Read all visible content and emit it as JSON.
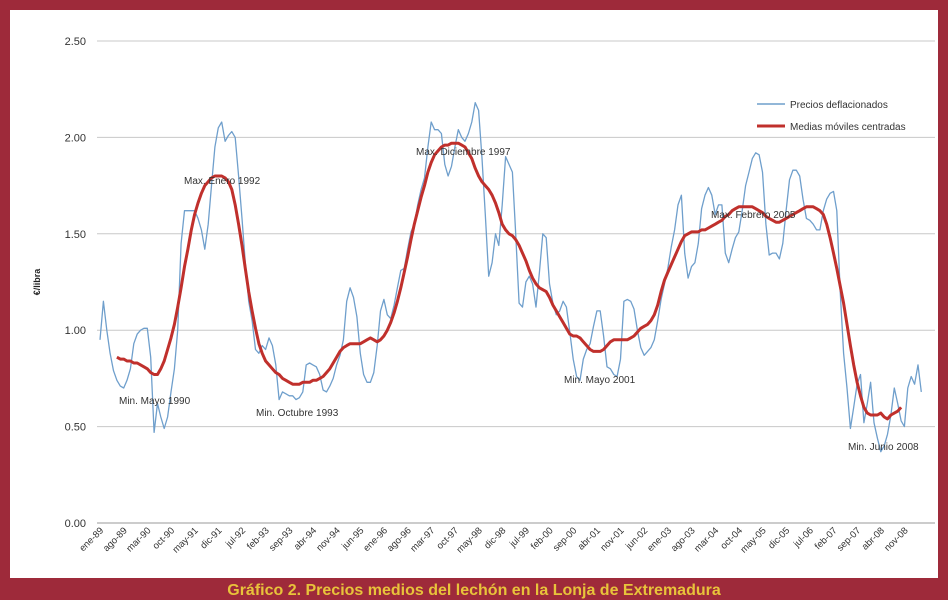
{
  "chart_data": {
    "type": "line",
    "caption": "Gráfico 2. Precios medios del lechón en la Lonja de Extremadura",
    "y_label": "€/libra",
    "annotations": [
      "Max. Enero 1992",
      "Min. Mayo 1990",
      "Min. Octubre 1993",
      "Max. Diciembre 1997",
      "Min. Mayo 2001",
      "Max. Febrero 2005",
      "Min. Junio 2008"
    ],
    "ylim": [
      0,
      2.5
    ],
    "yticks": [
      {
        "value": 0,
        "label": "0.00"
      },
      {
        "value": 0.5,
        "label": "0.50"
      },
      {
        "value": 1,
        "label": "1.00"
      },
      {
        "value": 1.5,
        "label": "1.50"
      },
      {
        "value": 2,
        "label": "2.00"
      },
      {
        "value": 2.5,
        "label": "2.50"
      }
    ],
    "grid": true,
    "legend": "upper right",
    "categories": [
      "ene-89",
      null,
      null,
      null,
      null,
      null,
      null,
      "ago-89",
      null,
      null,
      null,
      null,
      null,
      null,
      "mar-90",
      null,
      null,
      null,
      null,
      null,
      null,
      "oct-90",
      null,
      null,
      null,
      null,
      null,
      null,
      "may-91",
      null,
      null,
      null,
      null,
      null,
      null,
      "dic-91",
      null,
      null,
      null,
      null,
      null,
      null,
      "jul-92",
      null,
      null,
      null,
      null,
      null,
      null,
      "feb-93",
      null,
      null,
      null,
      null,
      null,
      null,
      "sep-93",
      null,
      null,
      null,
      null,
      null,
      null,
      "abr-94",
      null,
      null,
      null,
      null,
      null,
      null,
      "nov-94",
      null,
      null,
      null,
      null,
      null,
      null,
      "jun-95",
      null,
      null,
      null,
      null,
      null,
      null,
      "ene-96",
      null,
      null,
      null,
      null,
      null,
      null,
      "ago-96",
      null,
      null,
      null,
      null,
      null,
      null,
      "mar-97",
      null,
      null,
      null,
      null,
      null,
      null,
      "oct-97",
      null,
      null,
      null,
      null,
      null,
      null,
      "may-98",
      null,
      null,
      null,
      null,
      null,
      null,
      "dic-98",
      null,
      null,
      null,
      null,
      null,
      null,
      "jul-99",
      null,
      null,
      null,
      null,
      null,
      null,
      "feb-00",
      null,
      null,
      null,
      null,
      null,
      null,
      "sep-00",
      null,
      null,
      null,
      null,
      null,
      null,
      "abr-01",
      null,
      null,
      null,
      null,
      null,
      null,
      "nov-01",
      null,
      null,
      null,
      null,
      null,
      null,
      "jun-02",
      null,
      null,
      null,
      null,
      null,
      null,
      "ene-03",
      null,
      null,
      null,
      null,
      null,
      null,
      "ago-03",
      null,
      null,
      null,
      null,
      null,
      null,
      "mar-04",
      null,
      null,
      null,
      null,
      null,
      null,
      "oct-04",
      null,
      null,
      null,
      null,
      null,
      null,
      "may-05",
      null,
      null,
      null,
      null,
      null,
      null,
      "dic-05",
      null,
      null,
      null,
      null,
      null,
      null,
      "jul-06",
      null,
      null,
      null,
      null,
      null,
      null,
      "feb-07",
      null,
      null,
      null,
      null,
      null,
      null,
      "sep-07",
      null,
      null,
      null,
      null,
      null,
      null,
      "abr-08",
      null,
      null,
      null,
      null,
      null,
      null,
      "nov-08",
      null,
      null,
      null,
      null,
      null
    ],
    "series": [
      {
        "name": "Precios deflacionados",
        "color": "#6f9fcc",
        "values": [
          0.95,
          1.15,
          1.0,
          0.88,
          0.79,
          0.74,
          0.71,
          0.7,
          0.74,
          0.8,
          0.93,
          0.98,
          1.0,
          1.01,
          1.01,
          0.86,
          0.47,
          0.62,
          0.55,
          0.49,
          0.55,
          0.68,
          0.8,
          1.0,
          1.45,
          1.62,
          1.62,
          1.62,
          1.62,
          1.58,
          1.52,
          1.42,
          1.55,
          1.75,
          1.95,
          2.05,
          2.08,
          1.98,
          2.01,
          2.03,
          2.0,
          1.8,
          1.58,
          1.35,
          1.15,
          1.05,
          0.9,
          0.88,
          0.92,
          0.9,
          0.96,
          0.92,
          0.82,
          0.64,
          0.68,
          0.67,
          0.66,
          0.66,
          0.64,
          0.65,
          0.68,
          0.82,
          0.83,
          0.82,
          0.81,
          0.77,
          0.69,
          0.68,
          0.71,
          0.75,
          0.82,
          0.87,
          0.95,
          1.15,
          1.22,
          1.17,
          1.07,
          0.88,
          0.77,
          0.73,
          0.73,
          0.78,
          0.92,
          1.1,
          1.16,
          1.08,
          1.06,
          1.13,
          1.22,
          1.31,
          1.32,
          1.42,
          1.51,
          1.55,
          1.65,
          1.73,
          1.79,
          1.95,
          2.08,
          2.04,
          2.04,
          2.02,
          1.86,
          1.8,
          1.85,
          1.95,
          2.04,
          2.0,
          1.98,
          2.02,
          2.08,
          2.18,
          2.14,
          1.9,
          1.6,
          1.28,
          1.35,
          1.5,
          1.44,
          1.65,
          1.9,
          1.86,
          1.82,
          1.5,
          1.14,
          1.12,
          1.25,
          1.28,
          1.24,
          1.12,
          1.3,
          1.5,
          1.48,
          1.24,
          1.14,
          1.08,
          1.1,
          1.15,
          1.12,
          0.99,
          0.85,
          0.76,
          0.74,
          0.85,
          0.9,
          0.93,
          1.02,
          1.1,
          1.1,
          0.97,
          0.81,
          0.8,
          0.77,
          0.76,
          0.85,
          1.15,
          1.16,
          1.15,
          1.11,
          1.0,
          0.91,
          0.87,
          0.89,
          0.91,
          0.95,
          1.05,
          1.16,
          1.24,
          1.32,
          1.43,
          1.52,
          1.65,
          1.7,
          1.4,
          1.27,
          1.33,
          1.35,
          1.45,
          1.63,
          1.7,
          1.74,
          1.7,
          1.6,
          1.65,
          1.65,
          1.4,
          1.35,
          1.42,
          1.48,
          1.51,
          1.62,
          1.75,
          1.82,
          1.89,
          1.92,
          1.91,
          1.82,
          1.55,
          1.39,
          1.4,
          1.4,
          1.37,
          1.45,
          1.62,
          1.78,
          1.83,
          1.83,
          1.8,
          1.68,
          1.58,
          1.57,
          1.55,
          1.52,
          1.52,
          1.62,
          1.68,
          1.71,
          1.72,
          1.62,
          1.2,
          0.88,
          0.7,
          0.49,
          0.6,
          0.72,
          0.77,
          0.52,
          0.62,
          0.73,
          0.52,
          0.44,
          0.37,
          0.4,
          0.46,
          0.56,
          0.7,
          0.62,
          0.53,
          0.5,
          0.7,
          0.76,
          0.72,
          0.82,
          0.68
        ]
      },
      {
        "name": "Medias móviles centradas",
        "color": "#c0302c",
        "values": [
          null,
          null,
          null,
          null,
          null,
          0.86,
          0.85,
          0.85,
          0.84,
          0.84,
          0.83,
          0.83,
          0.82,
          0.81,
          0.8,
          0.78,
          0.77,
          0.77,
          0.8,
          0.84,
          0.9,
          0.96,
          1.03,
          1.12,
          1.22,
          1.33,
          1.42,
          1.52,
          1.6,
          1.66,
          1.71,
          1.75,
          1.77,
          1.79,
          1.8,
          1.8,
          1.8,
          1.79,
          1.77,
          1.73,
          1.65,
          1.55,
          1.44,
          1.32,
          1.2,
          1.1,
          1.01,
          0.93,
          0.88,
          0.84,
          0.82,
          0.8,
          0.78,
          0.77,
          0.75,
          0.74,
          0.73,
          0.72,
          0.72,
          0.72,
          0.73,
          0.73,
          0.73,
          0.74,
          0.74,
          0.75,
          0.76,
          0.78,
          0.8,
          0.83,
          0.86,
          0.89,
          0.91,
          0.92,
          0.93,
          0.93,
          0.93,
          0.93,
          0.94,
          0.95,
          0.96,
          0.95,
          0.94,
          0.95,
          0.97,
          1.0,
          1.04,
          1.09,
          1.15,
          1.22,
          1.3,
          1.38,
          1.47,
          1.55,
          1.62,
          1.69,
          1.75,
          1.82,
          1.87,
          1.91,
          1.93,
          1.95,
          1.96,
          1.96,
          1.97,
          1.97,
          1.97,
          1.96,
          1.95,
          1.92,
          1.89,
          1.84,
          1.8,
          1.77,
          1.75,
          1.73,
          1.7,
          1.66,
          1.61,
          1.55,
          1.52,
          1.5,
          1.49,
          1.47,
          1.44,
          1.4,
          1.36,
          1.31,
          1.27,
          1.24,
          1.22,
          1.21,
          1.2,
          1.17,
          1.13,
          1.1,
          1.07,
          1.04,
          1.01,
          0.98,
          0.97,
          0.97,
          0.96,
          0.94,
          0.92,
          0.9,
          0.89,
          0.89,
          0.89,
          0.9,
          0.92,
          0.94,
          0.95,
          0.95,
          0.95,
          0.95,
          0.95,
          0.96,
          0.97,
          0.99,
          1.01,
          1.02,
          1.03,
          1.05,
          1.08,
          1.13,
          1.2,
          1.26,
          1.3,
          1.34,
          1.38,
          1.42,
          1.46,
          1.49,
          1.5,
          1.51,
          1.51,
          1.51,
          1.52,
          1.52,
          1.53,
          1.54,
          1.55,
          1.56,
          1.57,
          1.59,
          1.6,
          1.62,
          1.63,
          1.64,
          1.64,
          1.64,
          1.64,
          1.64,
          1.63,
          1.62,
          1.61,
          1.59,
          1.58,
          1.57,
          1.56,
          1.56,
          1.57,
          1.58,
          1.59,
          1.6,
          1.61,
          1.62,
          1.63,
          1.64,
          1.64,
          1.64,
          1.63,
          1.62,
          1.6,
          1.55,
          1.48,
          1.4,
          1.32,
          1.23,
          1.14,
          1.03,
          0.92,
          0.82,
          0.73,
          0.66,
          0.6,
          0.57,
          0.56,
          0.56,
          0.56,
          0.57,
          0.55,
          0.54,
          0.56,
          0.57,
          0.58,
          0.6,
          null,
          null,
          null,
          null,
          null,
          null
        ]
      }
    ]
  }
}
